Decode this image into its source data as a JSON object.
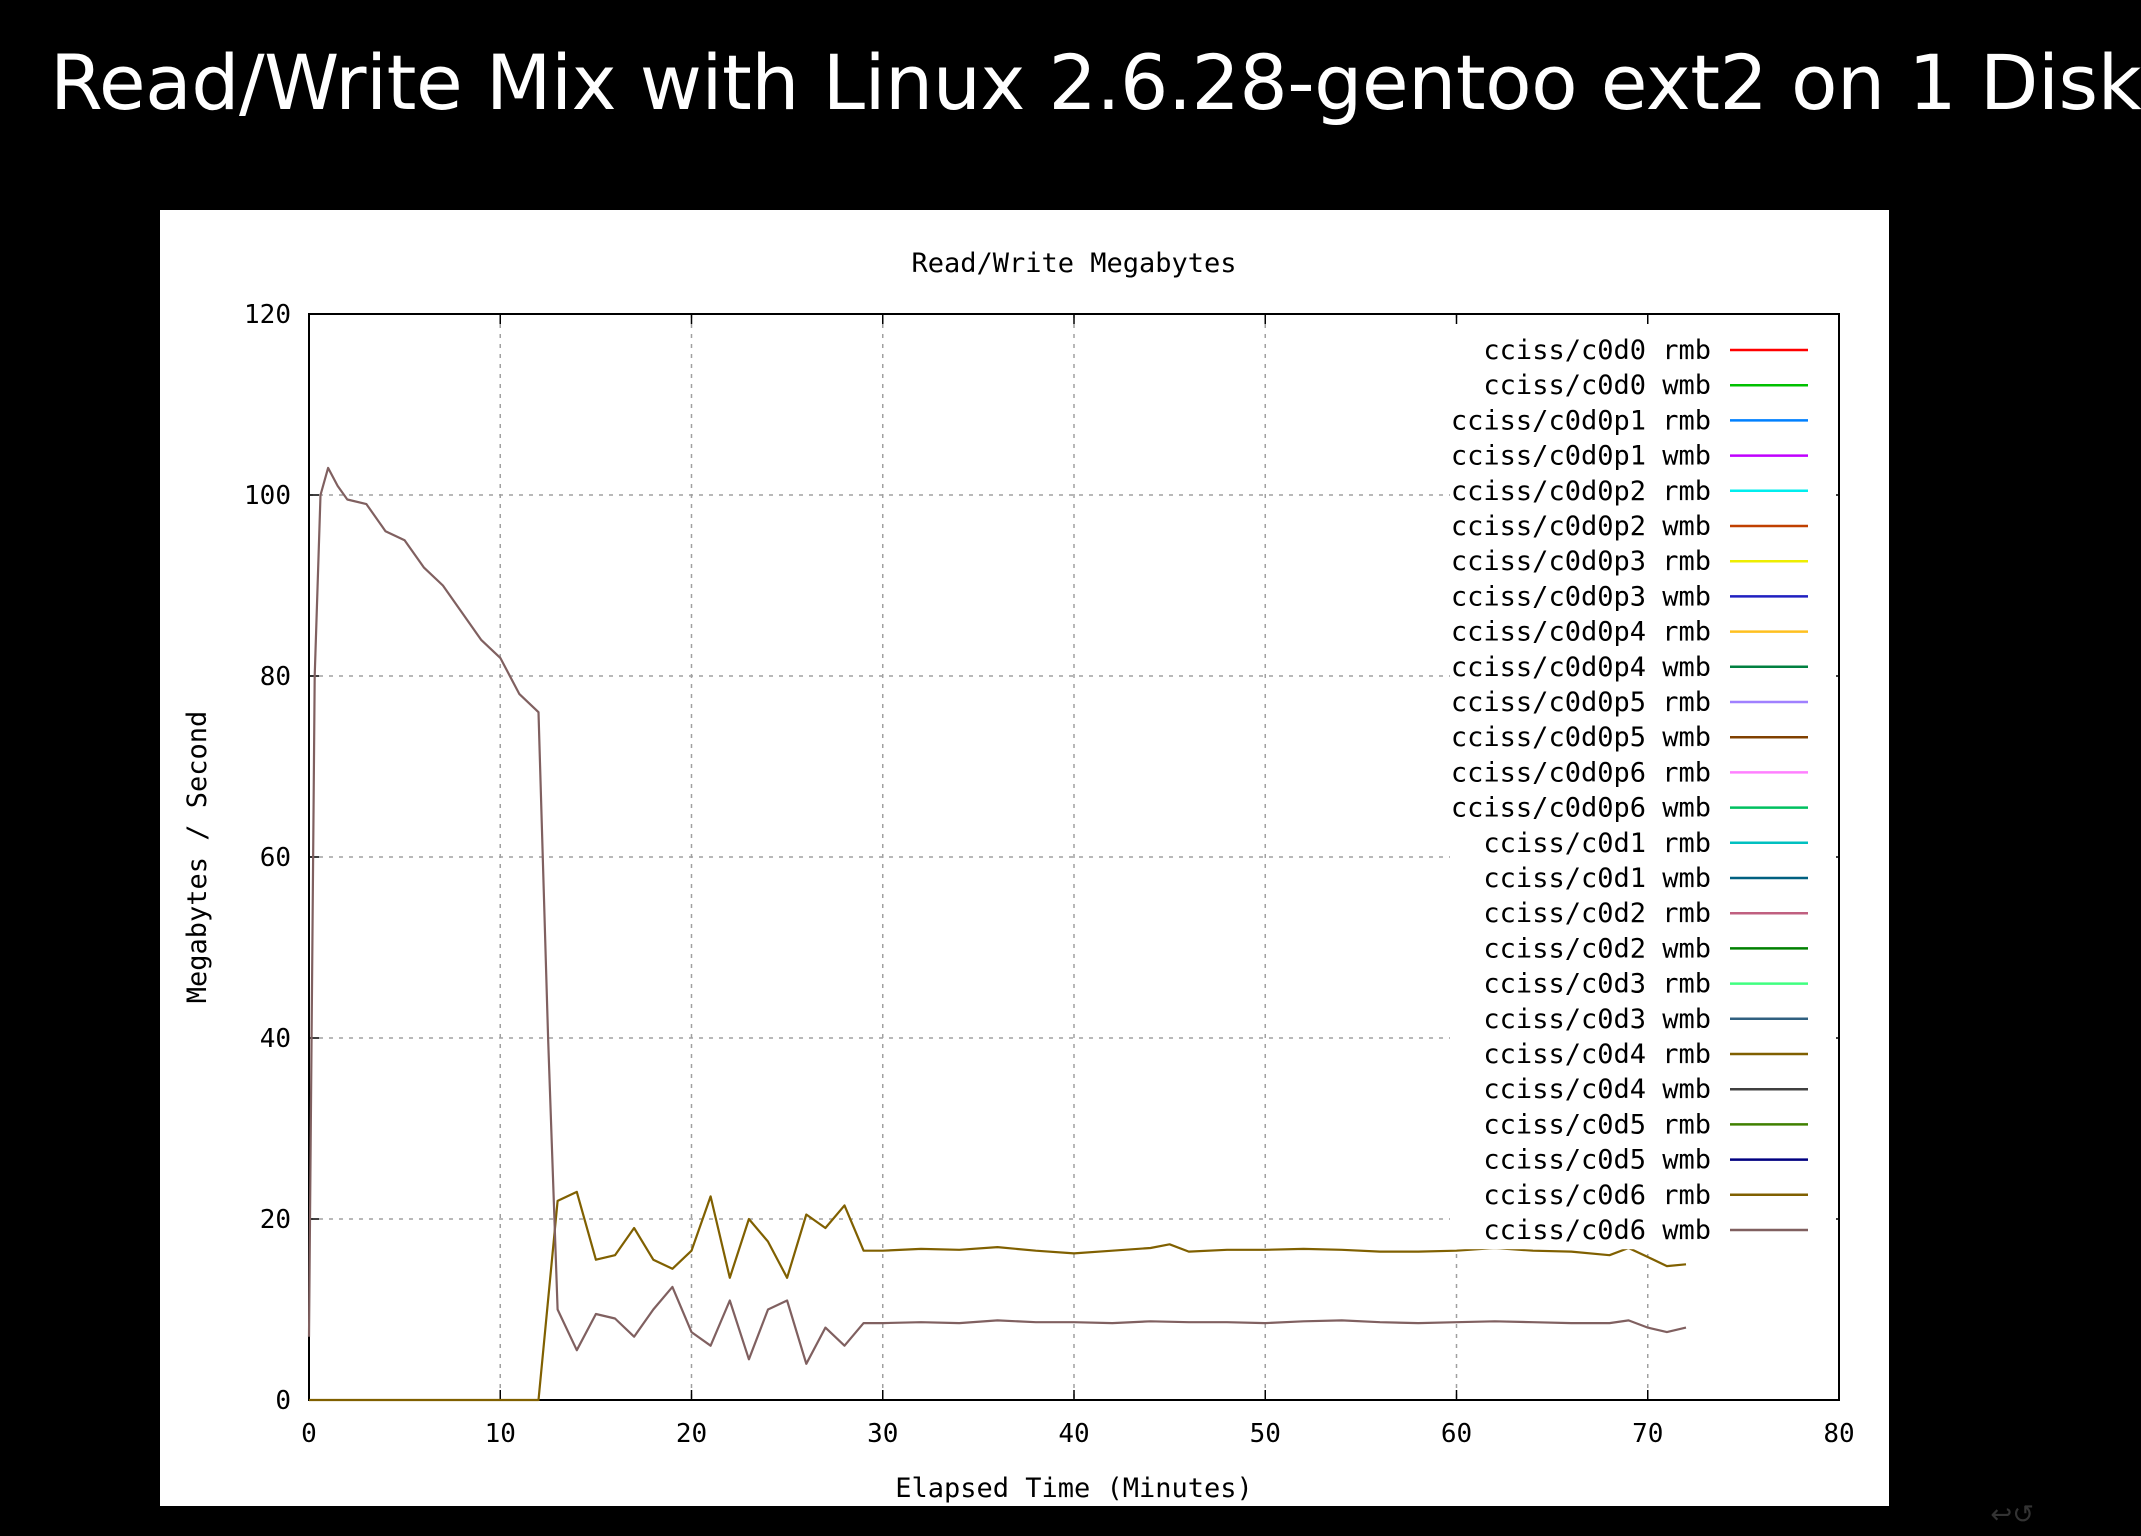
{
  "slide": {
    "title": "Read/Write Mix with Linux 2.6.28-gentoo ext2 on 1 Disk"
  },
  "chart_data": {
    "type": "line",
    "title": "Read/Write Megabytes",
    "xlabel": "Elapsed Time (Minutes)",
    "ylabel": "Megabytes / Second",
    "xlim": [
      0,
      80
    ],
    "ylim": [
      0,
      120
    ],
    "xticks": [
      0,
      10,
      20,
      30,
      40,
      50,
      60,
      70,
      80
    ],
    "yticks": [
      0,
      20,
      40,
      60,
      80,
      100,
      120
    ],
    "grid": true,
    "legend_position": "top-right",
    "series": [
      {
        "name": "cciss/c0d0 rmb",
        "color": "#ff0000",
        "x": [],
        "y": []
      },
      {
        "name": "cciss/c0d0 wmb",
        "color": "#00c000",
        "x": [],
        "y": []
      },
      {
        "name": "cciss/c0d0p1 rmb",
        "color": "#0080ff",
        "x": [],
        "y": []
      },
      {
        "name": "cciss/c0d0p1 wmb",
        "color": "#c000ff",
        "x": [],
        "y": []
      },
      {
        "name": "cciss/c0d0p2 rmb",
        "color": "#00eeee",
        "x": [],
        "y": []
      },
      {
        "name": "cciss/c0d0p2 wmb",
        "color": "#c04000",
        "x": [],
        "y": []
      },
      {
        "name": "cciss/c0d0p3 rmb",
        "color": "#eeee00",
        "x": [],
        "y": []
      },
      {
        "name": "cciss/c0d0p3 wmb",
        "color": "#2020c0",
        "x": [],
        "y": []
      },
      {
        "name": "cciss/c0d0p4 rmb",
        "color": "#ffc020",
        "x": [],
        "y": []
      },
      {
        "name": "cciss/c0d0p4 wmb",
        "color": "#008040",
        "x": [],
        "y": []
      },
      {
        "name": "cciss/c0d0p5 rmb",
        "color": "#a080ff",
        "x": [],
        "y": []
      },
      {
        "name": "cciss/c0d0p5 wmb",
        "color": "#804000",
        "x": [],
        "y": []
      },
      {
        "name": "cciss/c0d0p6 rmb",
        "color": "#ff80ff",
        "x": [],
        "y": []
      },
      {
        "name": "cciss/c0d0p6 wmb",
        "color": "#00c060",
        "x": [],
        "y": []
      },
      {
        "name": "cciss/c0d1 rmb",
        "color": "#00c0c0",
        "x": [],
        "y": []
      },
      {
        "name": "cciss/c0d1 wmb",
        "color": "#006080",
        "x": [],
        "y": []
      },
      {
        "name": "cciss/c0d2 rmb",
        "color": "#c06080",
        "x": [],
        "y": []
      },
      {
        "name": "cciss/c0d2 wmb",
        "color": "#008000",
        "x": [],
        "y": []
      },
      {
        "name": "cciss/c0d3 rmb",
        "color": "#40ff80",
        "x": [],
        "y": []
      },
      {
        "name": "cciss/c0d3 wmb",
        "color": "#306080",
        "x": [],
        "y": []
      },
      {
        "name": "cciss/c0d4 rmb",
        "color": "#806000",
        "x": [],
        "y": []
      },
      {
        "name": "cciss/c0d4 wmb",
        "color": "#404040",
        "x": [],
        "y": []
      },
      {
        "name": "cciss/c0d5 rmb",
        "color": "#408000",
        "x": [],
        "y": []
      },
      {
        "name": "cciss/c0d5 wmb",
        "color": "#000080",
        "x": [],
        "y": []
      },
      {
        "name": "cciss/c0d6 rmb",
        "color": "#806000",
        "x": [
          0,
          1,
          2,
          3,
          4,
          5,
          6,
          7,
          8,
          9,
          10,
          11,
          12,
          13,
          14,
          15,
          16,
          17,
          18,
          19,
          20,
          21,
          22,
          23,
          24,
          25,
          26,
          27,
          28,
          29,
          30,
          32,
          34,
          36,
          38,
          40,
          42,
          44,
          45,
          46,
          48,
          50,
          52,
          54,
          56,
          58,
          60,
          62,
          64,
          66,
          68,
          69,
          70,
          71,
          72
        ],
        "y": [
          0,
          0,
          0,
          0,
          0,
          0,
          0,
          0,
          0,
          0,
          0,
          0,
          0,
          22,
          23,
          15.5,
          16,
          19,
          15.5,
          14.5,
          16.5,
          22.5,
          13.5,
          20,
          17.5,
          13.5,
          20.5,
          19,
          21.5,
          16.5,
          16.5,
          16.7,
          16.6,
          16.9,
          16.5,
          16.2,
          16.5,
          16.8,
          17.2,
          16.4,
          16.6,
          16.6,
          16.7,
          16.6,
          16.4,
          16.4,
          16.5,
          16.8,
          16.5,
          16.4,
          16,
          16.8,
          15.8,
          14.8,
          15
        ]
      },
      {
        "name": "cciss/c0d6 wmb",
        "color": "#806060",
        "x": [
          0,
          0.3,
          0.6,
          1,
          1.5,
          2,
          3,
          4,
          5,
          6,
          7,
          8,
          9,
          10,
          11,
          12,
          12.5,
          13,
          14,
          15,
          16,
          17,
          18,
          19,
          20,
          21,
          22,
          23,
          24,
          25,
          26,
          27,
          28,
          29,
          30,
          32,
          34,
          36,
          38,
          40,
          42,
          44,
          46,
          48,
          50,
          52,
          54,
          56,
          58,
          60,
          62,
          64,
          66,
          68,
          69,
          70,
          71,
          72
        ],
        "y": [
          7,
          80,
          100,
          103,
          101,
          99.5,
          99,
          96,
          95,
          92,
          90,
          87,
          84,
          82,
          78,
          76,
          40,
          10,
          5.5,
          9.5,
          9,
          7,
          10,
          12.5,
          7.5,
          6,
          11,
          4.5,
          10,
          11,
          4,
          8,
          6,
          8.5,
          8.5,
          8.6,
          8.5,
          8.8,
          8.6,
          8.6,
          8.5,
          8.7,
          8.6,
          8.6,
          8.5,
          8.7,
          8.8,
          8.6,
          8.5,
          8.6,
          8.7,
          8.6,
          8.5,
          8.5,
          8.8,
          8,
          7.5,
          8
        ]
      }
    ]
  }
}
